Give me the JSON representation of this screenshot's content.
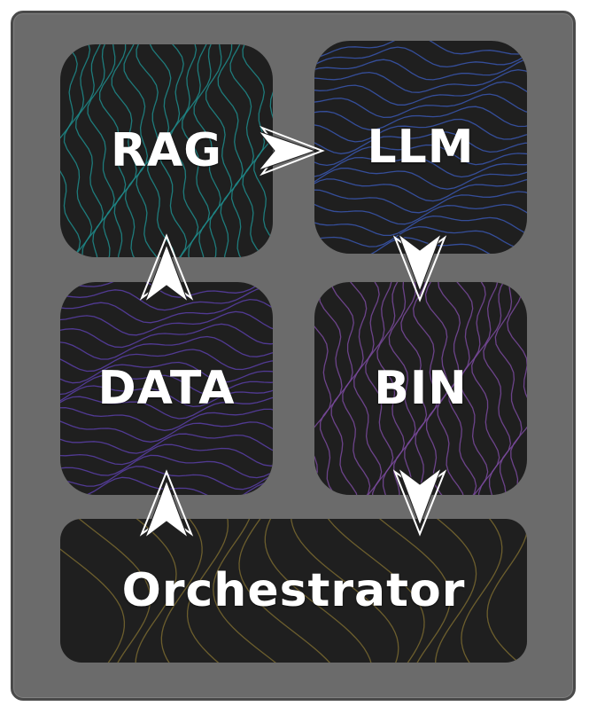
{
  "nodes": {
    "rag": {
      "label": "RAG",
      "texture_color": "#1f8c8c"
    },
    "llm": {
      "label": "LLM",
      "texture_color": "#3a57b0"
    },
    "data": {
      "label": "DATA",
      "texture_color": "#5b3fa8"
    },
    "bin": {
      "label": "BIN",
      "texture_color": "#7a4a9e"
    },
    "orchestrator": {
      "label": "Orchestrator",
      "texture_color": "#7a6a30"
    }
  },
  "colors": {
    "frame_bg": "#6b6b6b",
    "tile_bg": "#1f1f1f",
    "arrow_fill": "#ffffff"
  },
  "edges": [
    {
      "from": "RAG",
      "to": "LLM",
      "direction": "right"
    },
    {
      "from": "LLM",
      "to": "BIN",
      "direction": "down"
    },
    {
      "from": "BIN",
      "to": "Orchestrator",
      "direction": "down"
    },
    {
      "from": "Orchestrator",
      "to": "DATA",
      "direction": "up"
    },
    {
      "from": "DATA",
      "to": "RAG",
      "direction": "up"
    }
  ]
}
